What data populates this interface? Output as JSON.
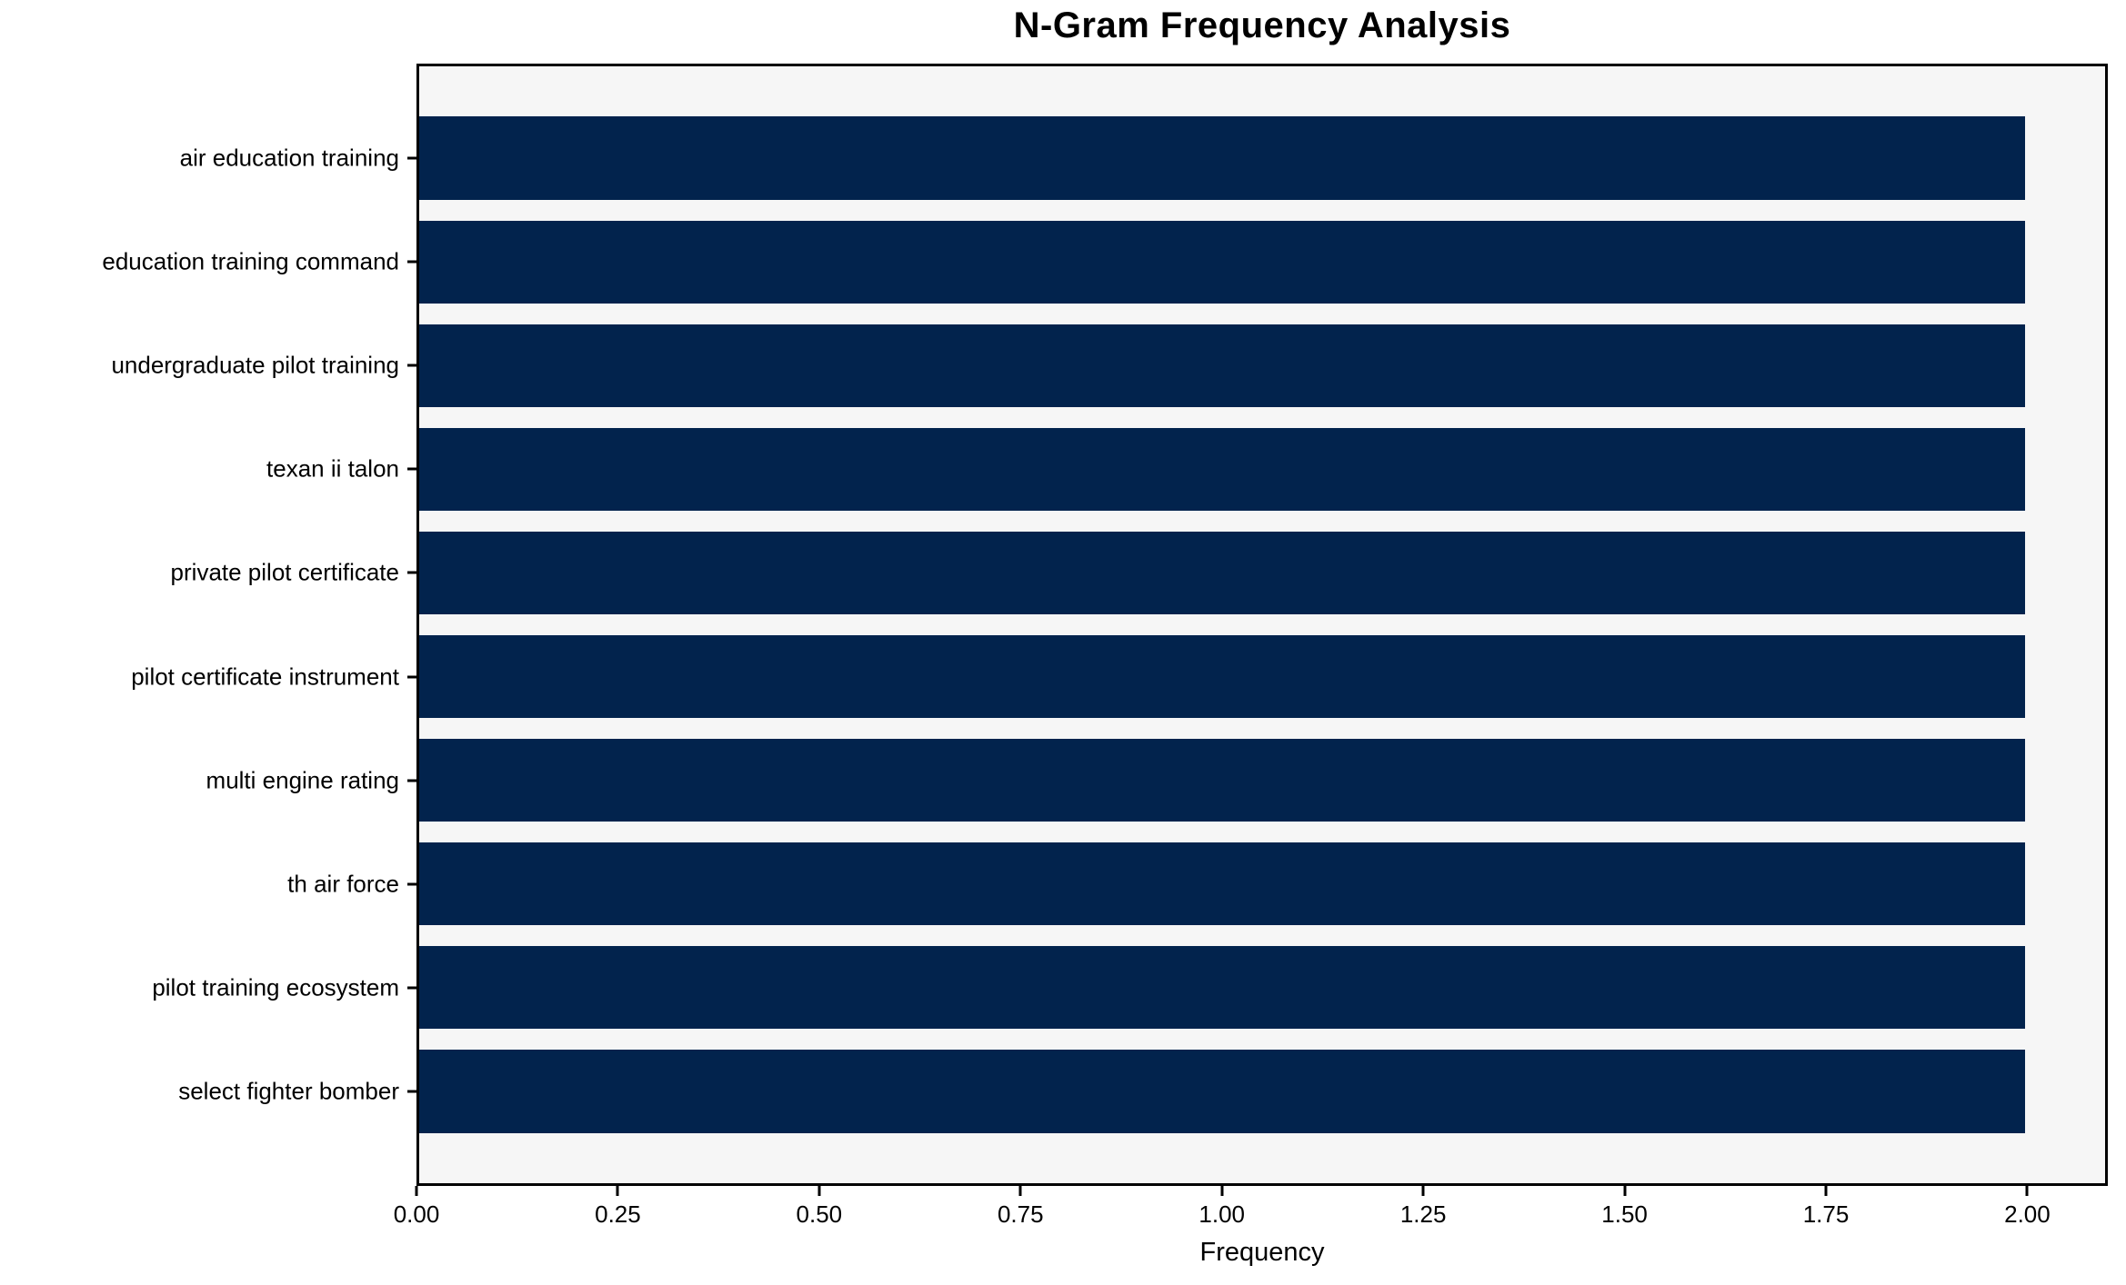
{
  "chart_data": {
    "type": "bar",
    "orientation": "horizontal",
    "title": "N-Gram Frequency Analysis",
    "xlabel": "Frequency",
    "ylabel": "",
    "categories": [
      "air education training",
      "education training command",
      "undergraduate pilot training",
      "texan ii talon",
      "private pilot certificate",
      "pilot certificate instrument",
      "multi engine rating",
      "th air force",
      "pilot training ecosystem",
      "select fighter bomber"
    ],
    "values": [
      2,
      2,
      2,
      2,
      2,
      2,
      2,
      2,
      2,
      2
    ],
    "xlim": [
      0,
      2.1
    ],
    "xtick_values": [
      0.0,
      0.25,
      0.5,
      0.75,
      1.0,
      1.25,
      1.5,
      1.75,
      2.0
    ],
    "xtick_labels": [
      "0.00",
      "0.25",
      "0.50",
      "0.75",
      "1.00",
      "1.25",
      "1.50",
      "1.75",
      "2.00"
    ],
    "grid": false,
    "legend_position": "none",
    "colors": {
      "bar": "#02234d",
      "plot_background": "#f6f6f6",
      "figure_background": "#ffffff",
      "spine": "#000000",
      "text": "#000000"
    }
  }
}
